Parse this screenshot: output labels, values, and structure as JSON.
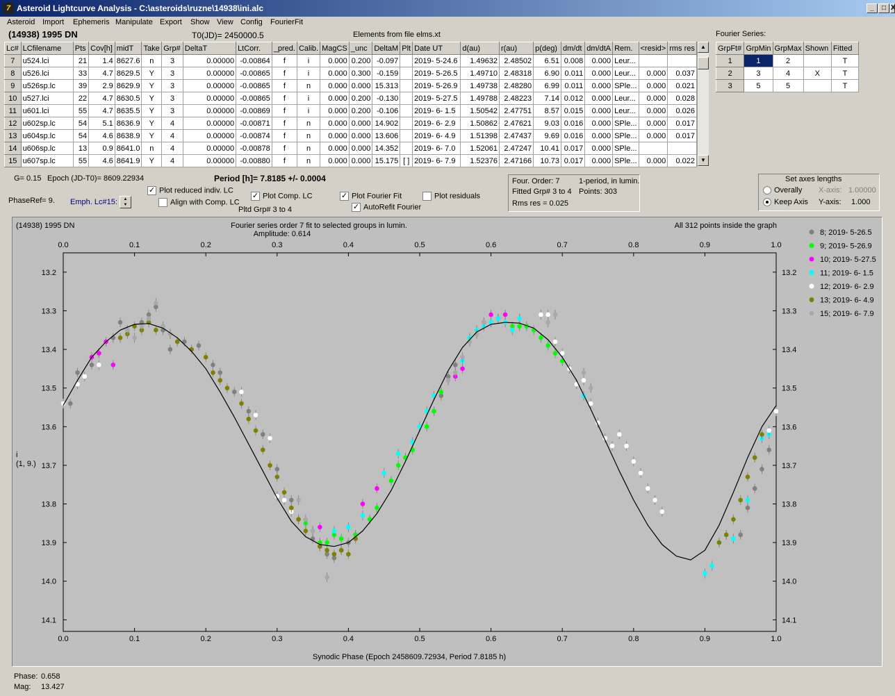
{
  "window": {
    "title": "Asteroid Lightcurve Analysis - C:\\asteroids\\ruzne\\14938\\ini.alc",
    "buttons": {
      "minimize": "_",
      "maximize": "□",
      "close": "X"
    }
  },
  "menu": [
    "Asteroid",
    "Import",
    "Ephemeris",
    "Manipulate",
    "Export",
    "Show",
    "View",
    "Config",
    "FourierFit"
  ],
  "header": {
    "asteroid": "(14938) 1995 DN",
    "t0": "T0(JD)= 2450000.5",
    "elements": "Elements from file elms.xt",
    "fourier_title": "Fourier Series:"
  },
  "lc_table": {
    "columns": [
      "Lc#",
      "LCfilename",
      "Pts",
      "Cov[h]",
      "midT",
      "Take",
      "Grp#",
      "DeltaT",
      "LtCorr.",
      "_pred.",
      "Calib.",
      "MagCS",
      "_unc",
      "DeltaM",
      "Plt",
      "Date UT",
      "d(au)",
      "r(au)",
      "p(deg)",
      "dm/dt",
      "dm/dtA",
      "Rem.",
      "<resid>",
      "rms res"
    ],
    "rows": [
      [
        "7",
        "u524.lci",
        "21",
        "1.4",
        "8627.6",
        "n",
        "3",
        "0.00000",
        "-0.00864",
        "f",
        "i",
        "0.000",
        "0.200",
        "-0.097",
        "",
        "2019- 5-24.6",
        "1.49632",
        "2.48502",
        "6.51",
        "0.008",
        "0.000",
        "Leur...",
        "",
        ""
      ],
      [
        "8",
        "u526.lci",
        "33",
        "4.7",
        "8629.5",
        "Y",
        "3",
        "0.00000",
        "-0.00865",
        "f",
        "i",
        "0.000",
        "0.300",
        "-0.159",
        "",
        "2019- 5-26.5",
        "1.49710",
        "2.48318",
        "6.90",
        "0.011",
        "0.000",
        "Leur...",
        "0.000",
        "0.037"
      ],
      [
        "9",
        "u526sp.lc",
        "39",
        "2.9",
        "8629.9",
        "Y",
        "3",
        "0.00000",
        "-0.00865",
        "f",
        "n",
        "0.000",
        "0.000",
        "15.313",
        "",
        "2019- 5-26.9",
        "1.49738",
        "2.48280",
        "6.99",
        "0.011",
        "0.000",
        "SPle...",
        "0.000",
        "0.021"
      ],
      [
        "10",
        "u527.lci",
        "22",
        "4.7",
        "8630.5",
        "Y",
        "3",
        "0.00000",
        "-0.00865",
        "f",
        "i",
        "0.000",
        "0.200",
        "-0.130",
        "",
        "2019- 5-27.5",
        "1.49788",
        "2.48223",
        "7.14",
        "0.012",
        "0.000",
        "Leur...",
        "0.000",
        "0.028"
      ],
      [
        "11",
        "u601.lci",
        "55",
        "4.7",
        "8635.5",
        "Y",
        "3",
        "0.00000",
        "-0.00869",
        "f",
        "i",
        "0.000",
        "0.200",
        "-0.106",
        "",
        "2019- 6- 1.5",
        "1.50542",
        "2.47751",
        "8.57",
        "0.015",
        "0.000",
        "Leur...",
        "0.000",
        "0.026"
      ],
      [
        "12",
        "u602sp.lc",
        "54",
        "5.1",
        "8636.9",
        "Y",
        "4",
        "0.00000",
        "-0.00871",
        "f",
        "n",
        "0.000",
        "0.000",
        "14.902",
        "",
        "2019- 6- 2.9",
        "1.50862",
        "2.47621",
        "9.03",
        "0.016",
        "0.000",
        "SPle...",
        "0.000",
        "0.017"
      ],
      [
        "13",
        "u604sp.lc",
        "54",
        "4.6",
        "8638.9",
        "Y",
        "4",
        "0.00000",
        "-0.00874",
        "f",
        "n",
        "0.000",
        "0.000",
        "13.606",
        "",
        "2019- 6- 4.9",
        "1.51398",
        "2.47437",
        "9.69",
        "0.016",
        "0.000",
        "SPle...",
        "0.000",
        "0.017"
      ],
      [
        "14",
        "u606sp.lc",
        "13",
        "0.9",
        "8641.0",
        "n",
        "4",
        "0.00000",
        "-0.00878",
        "f",
        "n",
        "0.000",
        "0.000",
        "14.352",
        "",
        "2019- 6- 7.0",
        "1.52061",
        "2.47247",
        "10.41",
        "0.017",
        "0.000",
        "SPle...",
        "",
        ""
      ],
      [
        "15",
        "u607sp.lc",
        "55",
        "4.6",
        "8641.9",
        "Y",
        "4",
        "0.00000",
        "-0.00880",
        "f",
        "n",
        "0.000",
        "0.000",
        "15.175",
        "[ ]",
        "2019- 6- 7.9",
        "1.52376",
        "2.47166",
        "10.73",
        "0.017",
        "0.000",
        "SPle...",
        "0.000",
        "0.022"
      ]
    ]
  },
  "fourier_table": {
    "columns": [
      "GrpFt#",
      "GrpMin",
      "GrpMax",
      "Shown",
      "Fitted"
    ],
    "rows": [
      [
        "1",
        "1",
        "2",
        "",
        "T"
      ],
      [
        "2",
        "3",
        "4",
        "X",
        "T"
      ],
      [
        "3",
        "5",
        "5",
        "",
        "T"
      ]
    ]
  },
  "params": {
    "g": "G= 0.15",
    "epoch": "Epoch (JD-T0)= 8609.22934",
    "period": "Period [h]= 7.8185 +/- 0.0004",
    "phaseref": "PhaseRef= 9.",
    "emph": "Emph. Lc#15:",
    "plotted_groups": "Pltd Grp#  3   to   4"
  },
  "checkboxes": {
    "plot_reduced": {
      "label": "Plot reduced indiv. LC",
      "checked": true
    },
    "align_comp": {
      "label": "Align with Comp. LC",
      "checked": false
    },
    "plot_comp": {
      "label": "Plot Comp. LC",
      "checked": true
    },
    "plot_fourier": {
      "label": "Plot Fourier Fit",
      "checked": true
    },
    "autorefit": {
      "label": "AutoRefit Fourier",
      "checked": true
    },
    "plot_residuals": {
      "label": "Plot residuals",
      "checked": false
    }
  },
  "fit_info": {
    "order": "Four. Order:  7",
    "mode": "1-period, in lumin.",
    "fitted": "Fitted Grp# 3 to 4",
    "points": "Points: 303",
    "rms": "Rms res     = 0.025"
  },
  "axes_box": {
    "title": "Set axes lengths",
    "overally": "Overally",
    "keep": "Keep Axis",
    "x_label": "X-axis:",
    "x_value": "1.00000",
    "y_label": "Y-axis:",
    "y_value": "1.000",
    "selected": "keep"
  },
  "status": {
    "phase_label": "Phase:",
    "phase_value": "0.658",
    "mag_label": "Mag:",
    "mag_value": "13.427"
  },
  "chart_data": {
    "type": "scatter",
    "title": "Fourier series order 7 fit to selected groups in lumin.",
    "subtitle": "Amplitude: 0.614",
    "corner_left": "(14938) 1995 DN",
    "corner_right": "All 312 points inside the graph",
    "xlabel": "Synodic Phase (Epoch 2458609.72934, Period 7.8185 h)",
    "ylabel": "i",
    "ylabel2": "(1, 9.)",
    "xlim": [
      0,
      1
    ],
    "ylim": [
      14.13,
      13.15
    ],
    "y_inverted": true,
    "xticks": [
      0.0,
      0.1,
      0.2,
      0.3,
      0.4,
      0.5,
      0.6,
      0.7,
      0.8,
      0.9,
      1.0
    ],
    "yticks": [
      13.2,
      13.3,
      13.4,
      13.5,
      13.6,
      13.7,
      13.8,
      13.9,
      14.0,
      14.1
    ],
    "legend_position": "right",
    "fourier_fit": {
      "name": "Fourier fit",
      "x": [
        0.0,
        0.02,
        0.04,
        0.06,
        0.08,
        0.1,
        0.12,
        0.14,
        0.16,
        0.18,
        0.2,
        0.22,
        0.24,
        0.26,
        0.28,
        0.3,
        0.32,
        0.34,
        0.36,
        0.38,
        0.4,
        0.42,
        0.44,
        0.46,
        0.48,
        0.5,
        0.52,
        0.54,
        0.56,
        0.58,
        0.6,
        0.62,
        0.64,
        0.66,
        0.68,
        0.7,
        0.72,
        0.74,
        0.76,
        0.78,
        0.8,
        0.82,
        0.84,
        0.86,
        0.88,
        0.9,
        0.92,
        0.94,
        0.96,
        0.98,
        1.0
      ],
      "y": [
        13.545,
        13.48,
        13.42,
        13.38,
        13.35,
        13.335,
        13.333,
        13.345,
        13.37,
        13.405,
        13.45,
        13.51,
        13.575,
        13.645,
        13.715,
        13.785,
        13.845,
        13.885,
        13.905,
        13.91,
        13.9,
        13.87,
        13.825,
        13.765,
        13.69,
        13.61,
        13.53,
        13.455,
        13.395,
        13.355,
        13.335,
        13.33,
        13.332,
        13.345,
        13.375,
        13.42,
        13.48,
        13.555,
        13.635,
        13.715,
        13.79,
        13.855,
        13.905,
        13.935,
        13.945,
        13.92,
        13.855,
        13.77,
        13.68,
        13.6,
        13.545
      ]
    },
    "series": [
      {
        "name": "8; 2019- 5-26.5",
        "color": "#808080",
        "x": [
          0.01,
          0.02,
          0.04,
          0.05,
          0.07,
          0.08,
          0.09,
          0.11,
          0.12,
          0.13,
          0.14,
          0.15,
          0.17,
          0.19,
          0.21,
          0.22,
          0.24,
          0.26,
          0.28,
          0.3,
          0.32,
          0.33,
          0.35,
          0.36,
          0.37,
          0.38,
          0.39,
          0.4,
          0.41,
          0.52,
          0.53,
          0.54,
          0.55,
          0.95,
          0.96,
          0.97,
          0.98,
          0.99
        ],
        "y": [
          13.54,
          13.46,
          13.44,
          13.41,
          13.37,
          13.33,
          13.35,
          13.33,
          13.31,
          13.29,
          13.35,
          13.4,
          13.38,
          13.39,
          13.44,
          13.46,
          13.51,
          13.56,
          13.62,
          13.71,
          13.79,
          13.84,
          13.89,
          13.91,
          13.93,
          13.94,
          13.92,
          13.9,
          13.88,
          13.56,
          13.52,
          13.47,
          13.44,
          13.88,
          13.81,
          13.76,
          13.71,
          13.66
        ]
      },
      {
        "name": "9; 2019- 5-26.9",
        "color": "#00ff00",
        "x": [
          0.34,
          0.35,
          0.36,
          0.37,
          0.38,
          0.39,
          0.41,
          0.43,
          0.44,
          0.46,
          0.47,
          0.48,
          0.49,
          0.51,
          0.52,
          0.53,
          0.63,
          0.64,
          0.65,
          0.66,
          0.67,
          0.68,
          0.69,
          0.7,
          0.71
        ],
        "y": [
          13.85,
          13.87,
          13.9,
          13.9,
          13.88,
          13.89,
          13.88,
          13.84,
          13.81,
          13.74,
          13.7,
          13.68,
          13.66,
          13.6,
          13.56,
          13.51,
          13.34,
          13.34,
          13.34,
          13.35,
          13.37,
          13.39,
          13.41,
          13.43,
          13.45
        ]
      },
      {
        "name": "10; 2019- 5-27.5",
        "color": "#ff00ff",
        "x": [
          0.04,
          0.05,
          0.06,
          0.07,
          0.36,
          0.42,
          0.44,
          0.55,
          0.56,
          0.59,
          0.6,
          0.61,
          0.62
        ],
        "y": [
          13.42,
          13.41,
          13.38,
          13.44,
          13.86,
          13.8,
          13.76,
          13.47,
          13.45,
          13.33,
          13.31,
          13.32,
          13.31
        ]
      },
      {
        "name": "11; 2019- 6- 1.5",
        "color": "#00ffff",
        "x": [
          0.38,
          0.4,
          0.42,
          0.45,
          0.47,
          0.49,
          0.5,
          0.51,
          0.52,
          0.56,
          0.57,
          0.58,
          0.59,
          0.6,
          0.61,
          0.62,
          0.63,
          0.64,
          0.72,
          0.73,
          0.9,
          0.91,
          0.92,
          0.93,
          0.94,
          0.96,
          0.97,
          0.98,
          0.99
        ],
        "y": [
          13.87,
          13.86,
          13.83,
          13.72,
          13.67,
          13.64,
          13.6,
          13.56,
          13.52,
          13.43,
          13.37,
          13.35,
          13.34,
          13.33,
          13.32,
          13.33,
          13.35,
          13.32,
          13.49,
          13.52,
          13.98,
          13.96,
          13.9,
          13.88,
          13.89,
          13.79,
          13.68,
          13.63,
          13.62
        ]
      },
      {
        "name": "12; 2019- 6- 2.9",
        "color": "#ffffff",
        "x": [
          0.0,
          0.02,
          0.03,
          0.05,
          0.25,
          0.27,
          0.29,
          0.3,
          0.31,
          0.32,
          0.67,
          0.68,
          0.69,
          0.7,
          0.71,
          0.72,
          0.73,
          0.74,
          0.75,
          0.76,
          0.77,
          0.78,
          0.79,
          0.8,
          0.81,
          0.82,
          0.83,
          0.84,
          0.99,
          1.0
        ],
        "y": [
          13.54,
          13.49,
          13.47,
          13.44,
          13.51,
          13.57,
          13.63,
          13.78,
          13.79,
          13.82,
          13.31,
          13.31,
          13.38,
          13.41,
          13.45,
          13.49,
          13.48,
          13.54,
          13.59,
          13.63,
          13.65,
          13.62,
          13.65,
          13.69,
          13.72,
          13.76,
          13.79,
          13.82,
          13.61,
          13.56
        ]
      },
      {
        "name": "13; 2019- 6- 4.9",
        "color": "#808000",
        "x": [
          0.08,
          0.09,
          0.1,
          0.11,
          0.12,
          0.13,
          0.15,
          0.16,
          0.18,
          0.2,
          0.21,
          0.22,
          0.23,
          0.25,
          0.26,
          0.27,
          0.28,
          0.29,
          0.3,
          0.31,
          0.32,
          0.33,
          0.34,
          0.36,
          0.37,
          0.38,
          0.39,
          0.4,
          0.41,
          0.92,
          0.93,
          0.94,
          0.95,
          0.96,
          0.97,
          0.98
        ],
        "y": [
          13.37,
          13.36,
          13.34,
          13.35,
          13.33,
          13.35,
          13.36,
          13.38,
          13.4,
          13.42,
          13.46,
          13.48,
          13.5,
          13.54,
          13.58,
          13.61,
          13.66,
          13.7,
          13.73,
          13.77,
          13.81,
          13.84,
          13.87,
          13.91,
          13.92,
          13.93,
          13.92,
          13.93,
          13.89,
          13.9,
          13.88,
          13.84,
          13.79,
          13.73,
          13.68,
          13.62
        ]
      },
      {
        "name": "15; 2019- 6- 7.9",
        "color": "#a9a9a9",
        "x": [
          0.09,
          0.1,
          0.11,
          0.12,
          0.13,
          0.14,
          0.15,
          0.33,
          0.34,
          0.35,
          0.37,
          0.54,
          0.55,
          0.56,
          0.57,
          0.58,
          0.59,
          0.68,
          0.69,
          0.73,
          0.74
        ],
        "y": [
          13.35,
          13.37,
          13.34,
          13.32,
          13.28,
          13.34,
          13.36,
          13.79,
          13.84,
          13.87,
          13.99,
          13.48,
          13.46,
          13.42,
          13.38,
          13.36,
          13.33,
          13.33,
          13.31,
          13.46,
          13.5
        ]
      }
    ]
  }
}
